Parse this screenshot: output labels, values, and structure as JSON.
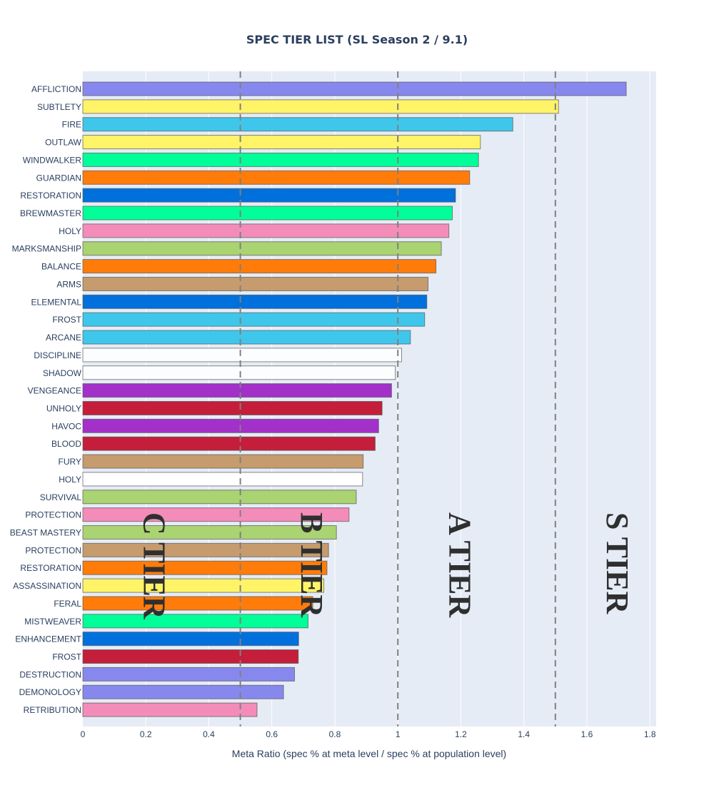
{
  "chart_data": {
    "type": "bar",
    "orientation": "horizontal",
    "title": "SPEC TIER LIST (SL Season 2 / 9.1)",
    "xlabel": "Meta Ratio (spec % at meta level / spec % at population level)",
    "ylabel": "",
    "xlim": [
      0,
      1.82
    ],
    "xticks": [
      "0",
      "0.2",
      "0.4",
      "0.6",
      "0.8",
      "1",
      "1.2",
      "1.4",
      "1.6",
      "1.8"
    ],
    "xtick_values": [
      0,
      0.2,
      0.4,
      0.6,
      0.8,
      1.0,
      1.2,
      1.4,
      1.6,
      1.8
    ],
    "grid": true,
    "plot_background": "#e5ecf6",
    "threshold_lines": [
      0.5,
      1.0,
      1.5
    ],
    "threshold_line_color": "#808080",
    "tiers": [
      {
        "label": "S TIER",
        "x": 1.7
      },
      {
        "label": "A TIER",
        "x": 1.2
      },
      {
        "label": "B TIER",
        "x": 0.73
      },
      {
        "label": "C TIER",
        "x": 0.23
      }
    ],
    "categories": [
      "AFFLICTION",
      "SUBTLETY",
      "FIRE",
      "OUTLAW",
      "WINDWALKER",
      "GUARDIAN",
      "RESTORATION",
      "BREWMASTER",
      "HOLY",
      "MARKSMANSHIP",
      "BALANCE",
      "ARMS",
      "ELEMENTAL",
      "FROST",
      "ARCANE",
      "DISCIPLINE",
      "SHADOW",
      "VENGEANCE",
      "UNHOLY",
      "HAVOC",
      "BLOOD",
      "FURY",
      "HOLY",
      "SURVIVAL",
      "PROTECTION",
      "BEAST MASTERY",
      "PROTECTION",
      "RESTORATION",
      "ASSASSINATION",
      "FERAL",
      "MISTWEAVER",
      "ENHANCEMENT",
      "FROST",
      "DESTRUCTION",
      "DEMONOLOGY",
      "RETRIBUTION"
    ],
    "values": [
      1.725,
      1.51,
      1.365,
      1.262,
      1.256,
      1.228,
      1.183,
      1.173,
      1.162,
      1.138,
      1.121,
      1.096,
      1.092,
      1.085,
      1.04,
      1.012,
      0.992,
      0.98,
      0.95,
      0.939,
      0.928,
      0.89,
      0.888,
      0.868,
      0.845,
      0.805,
      0.78,
      0.775,
      0.765,
      0.73,
      0.715,
      0.685,
      0.684,
      0.672,
      0.637,
      0.553
    ],
    "colors": [
      "#8788ee",
      "#fff468",
      "#3fc7eb",
      "#fff468",
      "#00ff98",
      "#ff7c0a",
      "#0070dd",
      "#00ff98",
      "#f48cba",
      "#aad372",
      "#ff7c0a",
      "#c69b6d",
      "#0070dd",
      "#3fc7eb",
      "#3fc7eb",
      "#fcfdfe",
      "#fcfdfe",
      "#a330c9",
      "#c41e3a",
      "#a330c9",
      "#c41e3a",
      "#c69b6d",
      "#ffffff",
      "#aad372",
      "#f48cba",
      "#aad372",
      "#c69b6d",
      "#ff7c0a",
      "#fff468",
      "#ff7c0a",
      "#00ff98",
      "#0070dd",
      "#c41e3a",
      "#8788ee",
      "#8788ee",
      "#f48cba"
    ]
  }
}
